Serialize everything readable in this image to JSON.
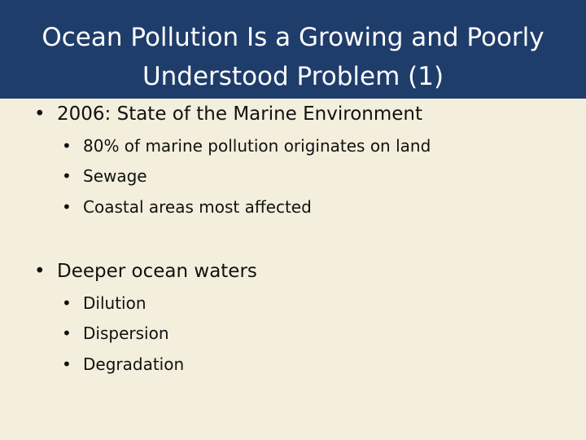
{
  "header": {
    "title": [
      "Ocean Pollution Is a Growing and Poorly",
      "Understood Problem (1)"
    ]
  },
  "bullets": [
    {
      "text": "2006: State of the Marine Environment",
      "sub": [
        "80% of marine pollution originates on land",
        "Sewage",
        "Coastal areas most affected"
      ]
    },
    {
      "text": "Deeper ocean waters",
      "sub": [
        "Dilution",
        "Dispersion",
        "Degradation"
      ]
    }
  ]
}
